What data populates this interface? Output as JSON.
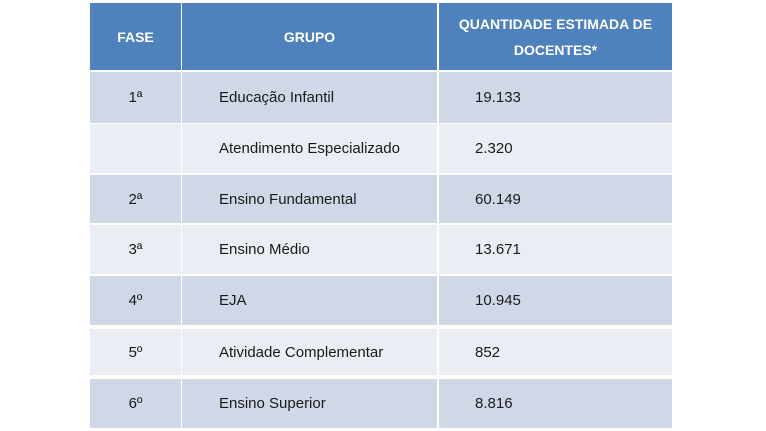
{
  "table": {
    "header": [
      "FASE",
      "GRUPO",
      "QUANTIDADE ESTIMADA DE DOCENTES*"
    ],
    "rows": [
      [
        "1ª",
        "Educação Infantil",
        "19.133"
      ],
      [
        null,
        "Atendimento Especializado",
        "2.320"
      ],
      [
        "2ª",
        "Ensino Fundamental",
        "60.149"
      ],
      [
        "3ª",
        "Ensino Médio",
        "13.671"
      ],
      [
        "4º",
        "EJA",
        "10.945"
      ],
      [
        "5º",
        "Atividade Complementar",
        "852"
      ],
      [
        "6º",
        "Ensino Superior",
        "8.816"
      ]
    ]
  }
}
